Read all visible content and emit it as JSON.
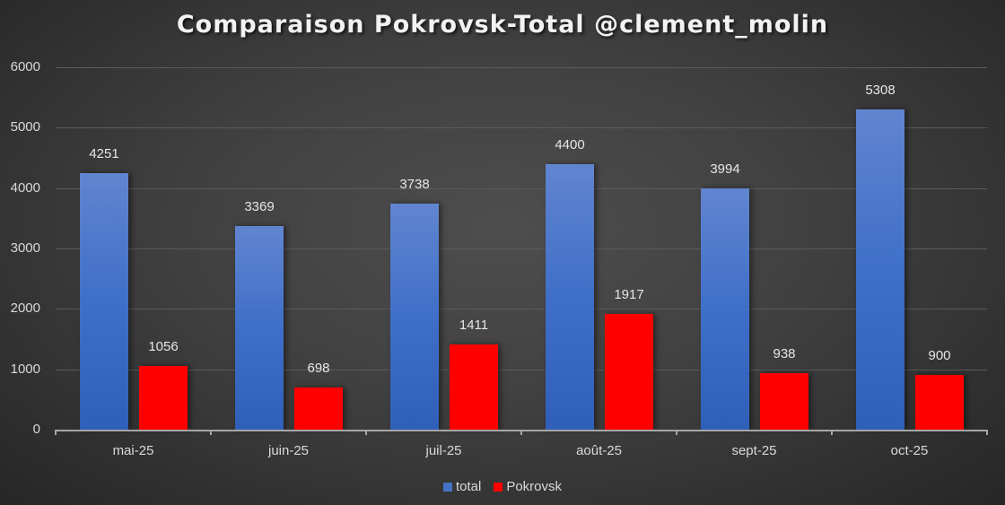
{
  "chart_data": {
    "type": "bar",
    "title": "Comparaison Pokrovsk-Total @clement_molin",
    "xlabel": "",
    "ylabel": "",
    "categories": [
      "mai-25",
      "juin-25",
      "juil-25",
      "août-25",
      "sept-25",
      "oct-25"
    ],
    "series": [
      {
        "name": "total",
        "color": "#4472c4",
        "values": [
          4251,
          3369,
          3738,
          4400,
          3994,
          5308
        ]
      },
      {
        "name": "Pokrovsk",
        "color": "#ff0000",
        "values": [
          1056,
          698,
          1411,
          1917,
          938,
          900
        ]
      }
    ],
    "ylim": [
      0,
      6000
    ],
    "yticks": [
      0,
      1000,
      2000,
      3000,
      4000,
      5000,
      6000
    ],
    "grid": true,
    "legend_position": "bottom",
    "data_labels": true
  },
  "legend": {
    "items": [
      {
        "label": "total",
        "color": "#4472c4"
      },
      {
        "label": "Pokrovsk",
        "color": "#ff0000"
      }
    ]
  }
}
